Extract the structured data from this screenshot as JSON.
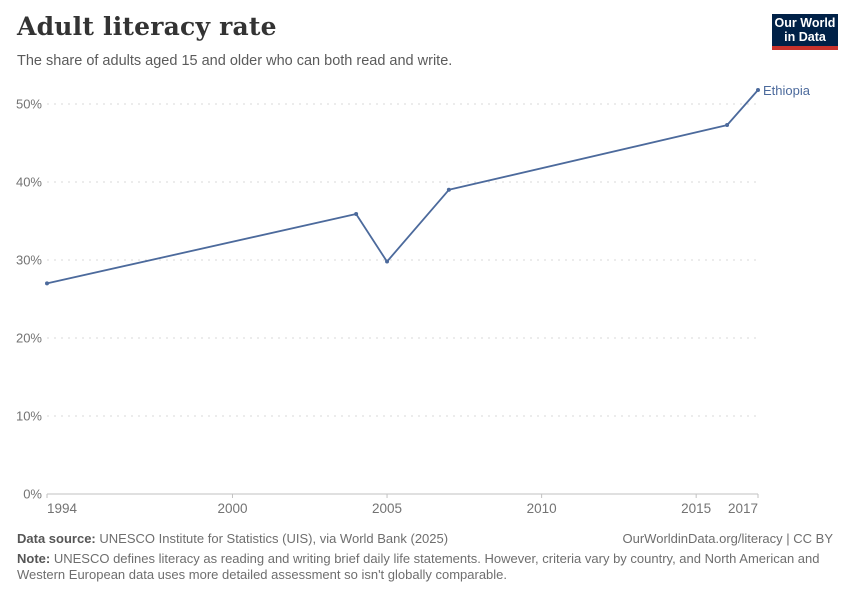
{
  "header": {
    "title": "Adult literacy rate",
    "subtitle": "The share of adults aged 15 and older who can both read and write.",
    "logo_line1": "Our World",
    "logo_line2": "in Data"
  },
  "chart_data": {
    "type": "line",
    "title": "Adult literacy rate",
    "xlabel": "",
    "ylabel": "",
    "x_ticks": [
      1994,
      2000,
      2005,
      2010,
      2015,
      2017
    ],
    "y_ticks": [
      0,
      10,
      20,
      30,
      40,
      50
    ],
    "y_tick_suffix": "%",
    "xlim": [
      1994,
      2017
    ],
    "ylim": [
      0,
      52
    ],
    "grid": "horizontal-dashed",
    "legend_position": "end-of-line-label",
    "series": [
      {
        "name": "Ethiopia",
        "color": "#4C6A9C",
        "points": [
          {
            "year": 1994,
            "value": 27.0
          },
          {
            "year": 2004,
            "value": 35.9
          },
          {
            "year": 2005,
            "value": 29.8
          },
          {
            "year": 2007,
            "value": 39.0
          },
          {
            "year": 2016,
            "value": 47.3
          },
          {
            "year": 2017,
            "value": 51.8
          }
        ]
      }
    ]
  },
  "footer": {
    "data_source_label": "Data source:",
    "data_source_text": "UNESCO Institute for Statistics (UIS), via World Bank (2025)",
    "link_text": "OurWorldinData.org/literacy | CC BY",
    "note_label": "Note:",
    "note_text": "UNESCO defines literacy as reading and writing brief daily life statements. However, criteria vary by country, and North American and Western European data uses more detailed assessment so isn't globally comparable."
  },
  "colors": {
    "line": "#4C6A9C",
    "gridline": "#d9d9d9",
    "axis": "#c2c2c2",
    "tick_text": "#737373",
    "logo_bg": "#002147",
    "logo_stripe": "#c8322b"
  }
}
